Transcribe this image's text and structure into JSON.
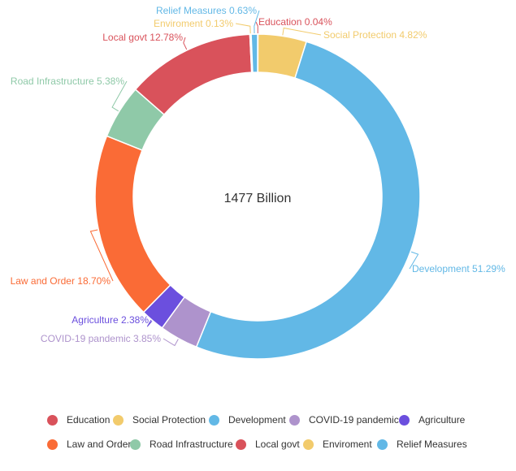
{
  "chart_data": {
    "type": "pie",
    "variant": "donut",
    "center_label": "1477 Billion",
    "slices": [
      {
        "name": "Education",
        "value": 0.04,
        "label": "Education 0.04%",
        "color": "#d9525b"
      },
      {
        "name": "Social Protection",
        "value": 4.82,
        "label": "Social Protection 4.82%",
        "color": "#f2cb6c"
      },
      {
        "name": "Development",
        "value": 51.29,
        "label": "Development 51.29%",
        "color": "#62b8e6"
      },
      {
        "name": "COVID-19 pandemic",
        "value": 3.85,
        "label": "COVID-19 pandemic 3.85%",
        "color": "#ae93cc"
      },
      {
        "name": "Agriculture",
        "value": 2.38,
        "label": "Agriculture 2.38%",
        "color": "#6b4fde"
      },
      {
        "name": "Law and Order",
        "value": 18.7,
        "label": "Law and Order 18.70%",
        "color": "#fa6b36"
      },
      {
        "name": "Road Infrastructure",
        "value": 5.38,
        "label": "Road Infrastructure  5.38%",
        "color": "#8fc9a8"
      },
      {
        "name": "Local govt",
        "value": 12.78,
        "label": "Local govt 12.78%",
        "color": "#d9525b"
      },
      {
        "name": "Enviroment",
        "value": 0.13,
        "label": "Enviroment  0.13%",
        "color": "#f2cb6c"
      },
      {
        "name": "Relief Measures",
        "value": 0.63,
        "label": "Relief Measures 0.63%",
        "color": "#62b8e6"
      }
    ],
    "legend": {
      "placement": "bottom",
      "rows": [
        [
          "Education",
          "Social Protection",
          "Development",
          "COVID-19 pandemic",
          "Agriculture"
        ],
        [
          "Law and Order",
          "Road Infrastructure",
          "Local govt",
          "Enviroment",
          "Relief Measures"
        ]
      ]
    }
  }
}
